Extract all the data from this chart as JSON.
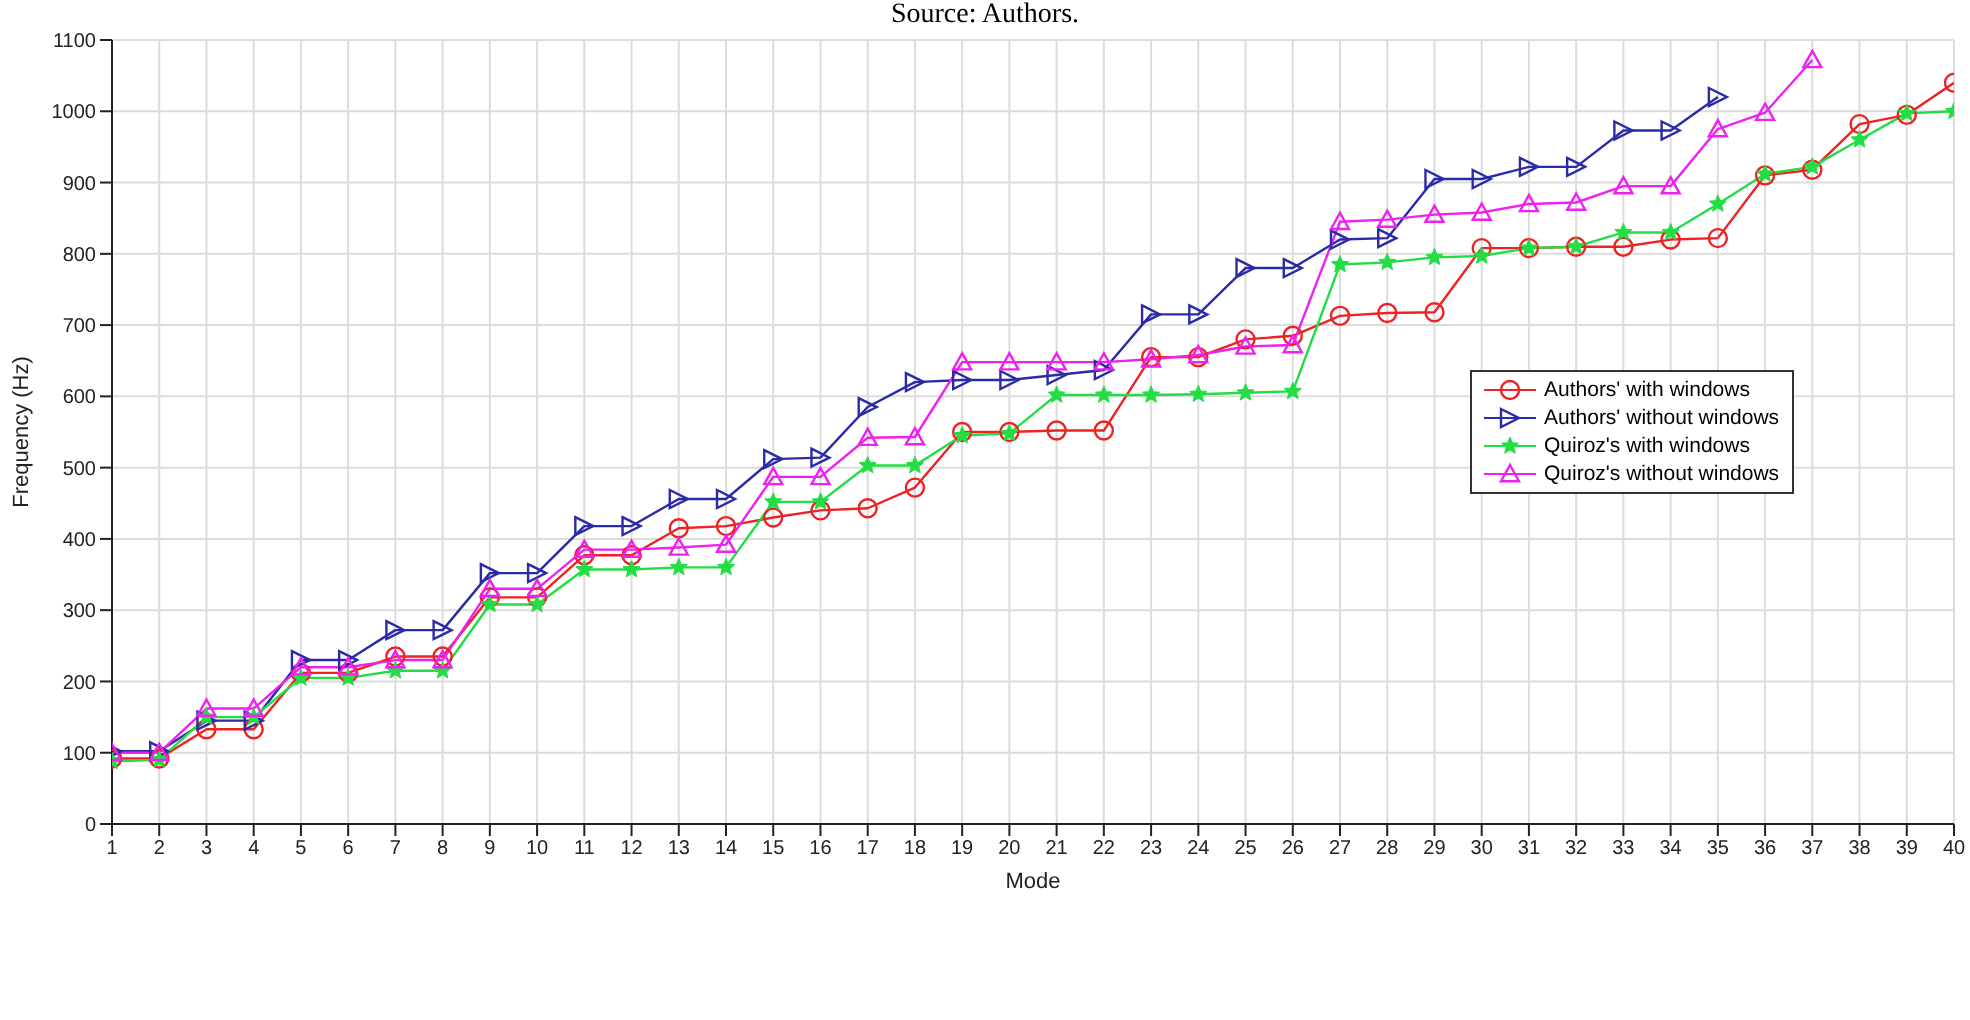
{
  "chart_data": {
    "type": "line",
    "xlabel": "Mode",
    "ylabel": "Frequency (Hz)",
    "annotations": [
      "Source: Authors."
    ],
    "x": [
      1,
      2,
      3,
      4,
      5,
      6,
      7,
      8,
      9,
      10,
      11,
      12,
      13,
      14,
      15,
      16,
      17,
      18,
      19,
      20,
      21,
      22,
      23,
      24,
      25,
      26,
      27,
      28,
      29,
      30,
      31,
      32,
      33,
      34,
      35,
      36,
      37,
      38,
      39,
      40
    ],
    "xlim": [
      1,
      40
    ],
    "xticks": [
      1,
      2,
      3,
      4,
      5,
      6,
      7,
      8,
      9,
      10,
      11,
      12,
      13,
      14,
      15,
      16,
      17,
      18,
      19,
      20,
      21,
      22,
      23,
      24,
      25,
      26,
      27,
      28,
      29,
      30,
      31,
      32,
      33,
      34,
      35,
      36,
      37,
      38,
      39,
      40
    ],
    "ylim": [
      0,
      1100
    ],
    "yticks": [
      0,
      100,
      200,
      300,
      400,
      500,
      600,
      700,
      800,
      900,
      1000,
      1100
    ],
    "grid": true,
    "legend": "right",
    "line_style": "solid",
    "series": [
      {
        "name": "Authors' with windows",
        "color": "#ee2222",
        "marker": "circle",
        "values": [
          92,
          92,
          133,
          133,
          212,
          212,
          235,
          235,
          318,
          318,
          377,
          377,
          415,
          418,
          430,
          440,
          443,
          472,
          550,
          550,
          552,
          552,
          655,
          655,
          680,
          685,
          713,
          717,
          718,
          808,
          808,
          810,
          810,
          820,
          822,
          910,
          918,
          982,
          995,
          1040
        ]
      },
      {
        "name": "Authors' without windows",
        "color": "#2b2ba8",
        "marker": "triangle",
        "values": [
          102,
          102,
          145,
          145,
          230,
          230,
          272,
          272,
          352,
          352,
          418,
          418,
          456,
          456,
          512,
          514,
          585,
          620,
          623,
          623,
          630,
          637,
          715,
          715,
          780,
          780,
          820,
          822,
          905,
          905,
          922,
          922,
          973,
          973,
          1020,
          null,
          null,
          null,
          null,
          null
        ]
      },
      {
        "name": "Quiroz's with windows",
        "color": "#22dd44",
        "marker": "star",
        "values": [
          88,
          90,
          150,
          150,
          205,
          205,
          215,
          215,
          308,
          308,
          357,
          357,
          360,
          360,
          452,
          452,
          503,
          503,
          545,
          548,
          602,
          602,
          602,
          603,
          605,
          607,
          785,
          788,
          795,
          797,
          808,
          810,
          830,
          830,
          870,
          912,
          922,
          960,
          997,
          1000
        ]
      },
      {
        "name": "Quiroz's without windows",
        "color": "#ee22ee",
        "marker": "triangle",
        "values": [
          100,
          100,
          162,
          162,
          220,
          220,
          230,
          230,
          330,
          330,
          385,
          385,
          388,
          392,
          487,
          487,
          542,
          543,
          648,
          648,
          648,
          648,
          652,
          658,
          670,
          672,
          845,
          848,
          855,
          858,
          870,
          872,
          895,
          895,
          975,
          998,
          1072,
          null,
          null,
          null
        ]
      }
    ]
  }
}
